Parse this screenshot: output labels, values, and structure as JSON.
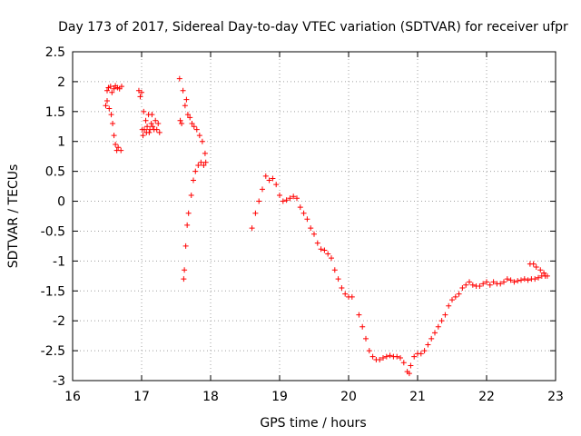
{
  "chart_data": {
    "type": "scatter",
    "title": "Day 173 of 2017, Sidereal Day-to-day VTEC variation (SDTVAR) for receiver ufpr",
    "xlabel": "GPS time / hours",
    "ylabel": "SDTVAR / TECUs",
    "xlim": [
      16,
      23
    ],
    "ylim": [
      -3,
      2.5
    ],
    "xticks": [
      16,
      17,
      18,
      19,
      20,
      21,
      22,
      23
    ],
    "xtick_labels": [
      "16",
      "17",
      "18",
      "19",
      "20",
      "21",
      "22",
      "23"
    ],
    "yticks": [
      -3,
      -2.5,
      -2,
      -1.5,
      -1,
      -0.5,
      0,
      0.5,
      1,
      1.5,
      2,
      2.5
    ],
    "ytick_labels": [
      "-3",
      "-2.5",
      "-2",
      "-1.5",
      "-1",
      "-0.5",
      "0",
      "0.5",
      "1",
      "1.5",
      "2",
      "2.5"
    ],
    "grid": true,
    "marker": "+",
    "marker_color": "#ff0000",
    "series": [
      {
        "name": "SDTVAR",
        "points": [
          [
            16.48,
            1.6
          ],
          [
            16.5,
            1.68
          ],
          [
            16.5,
            1.85
          ],
          [
            16.52,
            1.9
          ],
          [
            16.53,
            1.55
          ],
          [
            16.55,
            1.92
          ],
          [
            16.56,
            1.45
          ],
          [
            16.57,
            1.82
          ],
          [
            16.58,
            1.3
          ],
          [
            16.6,
            1.88
          ],
          [
            16.6,
            1.1
          ],
          [
            16.62,
            1.93
          ],
          [
            16.62,
            0.95
          ],
          [
            16.64,
            0.85
          ],
          [
            16.65,
            1.9
          ],
          [
            16.66,
            0.9
          ],
          [
            16.68,
            1.88
          ],
          [
            16.7,
            0.85
          ],
          [
            16.71,
            1.92
          ],
          [
            16.96,
            1.85
          ],
          [
            16.98,
            1.75
          ],
          [
            17.0,
            1.82
          ],
          [
            17.01,
            1.2
          ],
          [
            17.02,
            1.1
          ],
          [
            17.03,
            1.5
          ],
          [
            17.04,
            1.2
          ],
          [
            17.06,
            1.35
          ],
          [
            17.07,
            1.15
          ],
          [
            17.08,
            1.25
          ],
          [
            17.1,
            1.45
          ],
          [
            17.11,
            1.15
          ],
          [
            17.12,
            1.2
          ],
          [
            17.14,
            1.3
          ],
          [
            17.15,
            1.45
          ],
          [
            17.16,
            1.25
          ],
          [
            17.18,
            1.2
          ],
          [
            17.2,
            1.35
          ],
          [
            17.22,
            1.2
          ],
          [
            17.24,
            1.3
          ],
          [
            17.26,
            1.15
          ],
          [
            17.55,
            2.05
          ],
          [
            17.56,
            1.35
          ],
          [
            17.58,
            1.3
          ],
          [
            17.6,
            1.85
          ],
          [
            17.61,
            -1.3
          ],
          [
            17.62,
            -1.15
          ],
          [
            17.63,
            1.6
          ],
          [
            17.64,
            -0.75
          ],
          [
            17.65,
            1.7
          ],
          [
            17.66,
            -0.4
          ],
          [
            17.67,
            1.45
          ],
          [
            17.68,
            -0.2
          ],
          [
            17.7,
            1.4
          ],
          [
            17.72,
            0.1
          ],
          [
            17.73,
            1.3
          ],
          [
            17.75,
            0.35
          ],
          [
            17.76,
            1.25
          ],
          [
            17.78,
            0.5
          ],
          [
            17.8,
            1.2
          ],
          [
            17.82,
            0.6
          ],
          [
            17.84,
            1.1
          ],
          [
            17.86,
            0.65
          ],
          [
            17.88,
            1.0
          ],
          [
            17.9,
            0.6
          ],
          [
            17.92,
            0.8
          ],
          [
            17.93,
            0.65
          ],
          [
            18.6,
            -0.45
          ],
          [
            18.65,
            -0.2
          ],
          [
            18.7,
            0.0
          ],
          [
            18.75,
            0.2
          ],
          [
            18.8,
            0.42
          ],
          [
            18.85,
            0.35
          ],
          [
            18.9,
            0.38
          ],
          [
            18.95,
            0.28
          ],
          [
            19.0,
            0.1
          ],
          [
            19.05,
            0.0
          ],
          [
            19.1,
            0.02
          ],
          [
            19.15,
            0.05
          ],
          [
            19.2,
            0.08
          ],
          [
            19.25,
            0.05
          ],
          [
            19.3,
            -0.1
          ],
          [
            19.35,
            -0.2
          ],
          [
            19.4,
            -0.3
          ],
          [
            19.45,
            -0.45
          ],
          [
            19.5,
            -0.55
          ],
          [
            19.55,
            -0.7
          ],
          [
            19.6,
            -0.8
          ],
          [
            19.65,
            -0.82
          ],
          [
            19.7,
            -0.88
          ],
          [
            19.75,
            -0.95
          ],
          [
            19.8,
            -1.15
          ],
          [
            19.85,
            -1.3
          ],
          [
            19.9,
            -1.45
          ],
          [
            19.95,
            -1.55
          ],
          [
            20.0,
            -1.6
          ],
          [
            20.05,
            -1.6
          ],
          [
            20.15,
            -1.9
          ],
          [
            20.2,
            -2.1
          ],
          [
            20.25,
            -2.3
          ],
          [
            20.3,
            -2.5
          ],
          [
            20.35,
            -2.6
          ],
          [
            20.4,
            -2.65
          ],
          [
            20.45,
            -2.65
          ],
          [
            20.5,
            -2.62
          ],
          [
            20.55,
            -2.6
          ],
          [
            20.6,
            -2.58
          ],
          [
            20.65,
            -2.6
          ],
          [
            20.7,
            -2.6
          ],
          [
            20.75,
            -2.62
          ],
          [
            20.8,
            -2.7
          ],
          [
            20.85,
            -2.85
          ],
          [
            20.88,
            -2.88
          ],
          [
            20.9,
            -2.75
          ],
          [
            20.95,
            -2.6
          ],
          [
            21.0,
            -2.55
          ],
          [
            21.05,
            -2.55
          ],
          [
            21.1,
            -2.5
          ],
          [
            21.15,
            -2.4
          ],
          [
            21.2,
            -2.3
          ],
          [
            21.25,
            -2.2
          ],
          [
            21.3,
            -2.1
          ],
          [
            21.35,
            -2.0
          ],
          [
            21.4,
            -1.9
          ],
          [
            21.45,
            -1.75
          ],
          [
            21.5,
            -1.65
          ],
          [
            21.55,
            -1.6
          ],
          [
            21.6,
            -1.55
          ],
          [
            21.65,
            -1.45
          ],
          [
            21.7,
            -1.4
          ],
          [
            21.75,
            -1.35
          ],
          [
            21.8,
            -1.4
          ],
          [
            21.85,
            -1.42
          ],
          [
            21.9,
            -1.42
          ],
          [
            21.95,
            -1.38
          ],
          [
            22.0,
            -1.35
          ],
          [
            22.05,
            -1.4
          ],
          [
            22.1,
            -1.35
          ],
          [
            22.15,
            -1.38
          ],
          [
            22.2,
            -1.38
          ],
          [
            22.25,
            -1.35
          ],
          [
            22.3,
            -1.3
          ],
          [
            22.35,
            -1.32
          ],
          [
            22.4,
            -1.35
          ],
          [
            22.45,
            -1.33
          ],
          [
            22.5,
            -1.32
          ],
          [
            22.55,
            -1.3
          ],
          [
            22.6,
            -1.32
          ],
          [
            22.63,
            -1.05
          ],
          [
            22.65,
            -1.3
          ],
          [
            22.68,
            -1.05
          ],
          [
            22.7,
            -1.3
          ],
          [
            22.72,
            -1.1
          ],
          [
            22.75,
            -1.28
          ],
          [
            22.78,
            -1.15
          ],
          [
            22.8,
            -1.25
          ],
          [
            22.83,
            -1.2
          ],
          [
            22.85,
            -1.25
          ],
          [
            22.88,
            -1.25
          ]
        ]
      }
    ]
  }
}
